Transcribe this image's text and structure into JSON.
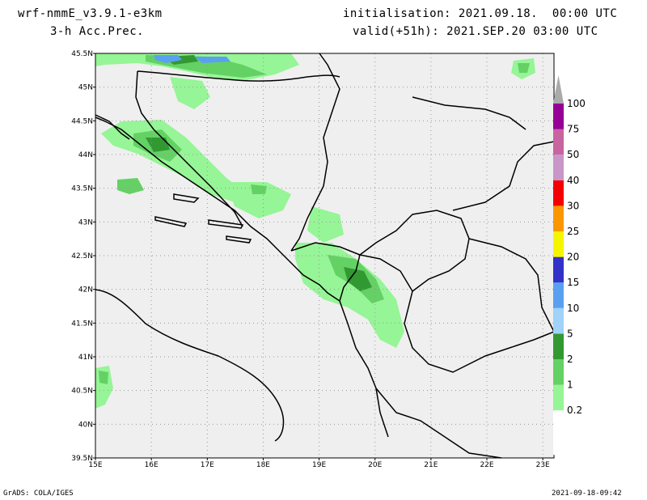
{
  "header": {
    "model": "wrf-nmmE_v3.9.1-e3km",
    "field": "3-h Acc.Prec.",
    "init": "initialisation: 2021.09.18.  00:00 UTC",
    "valid": "valid(+51h): 2021.SEP.20 03:00 UTC"
  },
  "footer": {
    "credit": "GrADS: COLA/IGES",
    "timestamp": "2021-09-18-09:42"
  },
  "map": {
    "lon_range": [
      15,
      23.2
    ],
    "lat_range": [
      39.5,
      45.5
    ],
    "lon_ticks": [
      "15E",
      "16E",
      "17E",
      "18E",
      "19E",
      "20E",
      "21E",
      "22E",
      "23E"
    ],
    "lat_ticks": [
      "39.5N",
      "40N",
      "40.5N",
      "41N",
      "41.5N",
      "42N",
      "42.5N",
      "43N",
      "43.5N",
      "44N",
      "44.5N",
      "45N",
      "45.5N"
    ],
    "grid": true,
    "background_color": "#efefef"
  },
  "colorbar": {
    "labels": [
      "0.2",
      "1",
      "2",
      "5",
      "10",
      "15",
      "20",
      "25",
      "30",
      "40",
      "50",
      "75",
      "100"
    ],
    "colors": [
      "#96f596",
      "#64d164",
      "#329932",
      "#a0d2fa",
      "#5aa0f0",
      "#3232c8",
      "#f5f500",
      "#fa9600",
      "#f50000",
      "#c896c8",
      "#c864a0",
      "#960096",
      "#aaaaaa"
    ]
  }
}
